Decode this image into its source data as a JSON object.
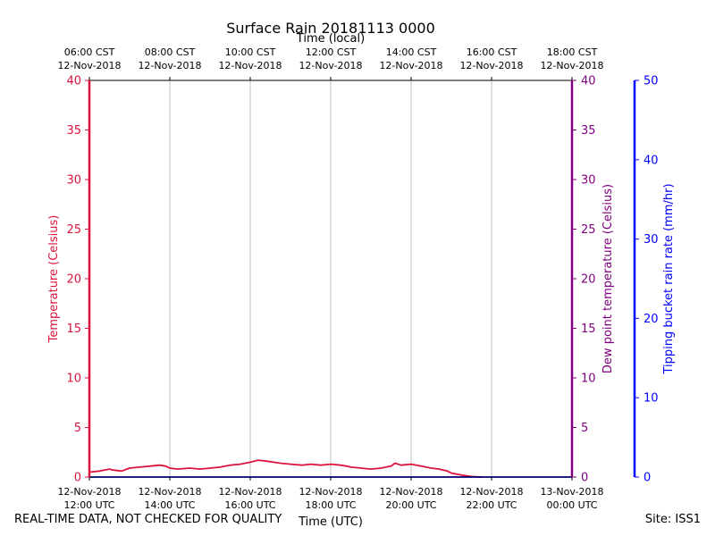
{
  "chart_data": {
    "type": "line",
    "title": "Surface Rain 20181113 0000",
    "top_axis_label": "Time (local)",
    "x_axis_label": "Time (UTC)",
    "left_ylabel": "Temperature (Celsius)",
    "right_ylabel": "Dew point temperature (Celsius)",
    "far_right_ylabel": "Tipping bucket rain rate (mm/hr)",
    "x_range_hours": [
      12,
      24
    ],
    "temp_ylim": [
      0,
      40
    ],
    "dew_ylim": [
      0,
      40
    ],
    "rain_ylim": [
      0,
      50
    ],
    "temp_ticks": [
      "0",
      "5",
      "10",
      "15",
      "20",
      "25",
      "30",
      "35",
      "40"
    ],
    "dew_ticks": [
      "0",
      "5",
      "10",
      "15",
      "20",
      "25",
      "30",
      "35",
      "40"
    ],
    "rain_ticks": [
      "0",
      "10",
      "20",
      "30",
      "40",
      "50"
    ],
    "bottom_ticks": [
      {
        "hour": 12,
        "line1": "12-Nov-2018",
        "line2": "12:00 UTC"
      },
      {
        "hour": 14,
        "line1": "12-Nov-2018",
        "line2": "14:00 UTC"
      },
      {
        "hour": 16,
        "line1": "12-Nov-2018",
        "line2": "16:00 UTC"
      },
      {
        "hour": 18,
        "line1": "12-Nov-2018",
        "line2": "18:00 UTC"
      },
      {
        "hour": 20,
        "line1": "12-Nov-2018",
        "line2": "20:00 UTC"
      },
      {
        "hour": 22,
        "line1": "12-Nov-2018",
        "line2": "22:00 UTC"
      },
      {
        "hour": 24,
        "line1": "13-Nov-2018",
        "line2": "00:00 UTC"
      }
    ],
    "top_ticks": [
      {
        "hour": 12,
        "line1": "06:00 CST",
        "line2": "12-Nov-2018"
      },
      {
        "hour": 14,
        "line1": "08:00 CST",
        "line2": "12-Nov-2018"
      },
      {
        "hour": 16,
        "line1": "10:00 CST",
        "line2": "12-Nov-2018"
      },
      {
        "hour": 18,
        "line1": "12:00 CST",
        "line2": "12-Nov-2018"
      },
      {
        "hour": 20,
        "line1": "14:00 CST",
        "line2": "12-Nov-2018"
      },
      {
        "hour": 22,
        "line1": "16:00 CST",
        "line2": "12-Nov-2018"
      },
      {
        "hour": 24,
        "line1": "18:00 CST",
        "line2": "12-Nov-2018"
      }
    ],
    "series": [
      {
        "name": "Temperature",
        "color": "#dc143c",
        "x": [
          12.0,
          12.25,
          12.5,
          12.6,
          12.8,
          13.0,
          13.25,
          13.5,
          13.75,
          13.9,
          14.0,
          14.2,
          14.5,
          14.75,
          15.0,
          15.25,
          15.5,
          15.75,
          16.0,
          16.2,
          16.4,
          16.75,
          17.0,
          17.3,
          17.5,
          17.75,
          18.0,
          18.25,
          18.4,
          18.5,
          18.75,
          19.0,
          19.25,
          19.5,
          19.6,
          19.75,
          20.0,
          20.25,
          20.5,
          20.7,
          20.9,
          21.0,
          21.25,
          21.5,
          21.75
        ],
        "y": [
          0.5,
          0.6,
          0.8,
          0.7,
          0.6,
          0.9,
          1.0,
          1.1,
          1.2,
          1.1,
          0.9,
          0.8,
          0.9,
          0.8,
          0.9,
          1.0,
          1.2,
          1.3,
          1.5,
          1.7,
          1.6,
          1.4,
          1.3,
          1.2,
          1.3,
          1.2,
          1.3,
          1.2,
          1.1,
          1.0,
          0.9,
          0.8,
          0.9,
          1.1,
          1.4,
          1.2,
          1.3,
          1.1,
          0.9,
          0.8,
          0.6,
          0.4,
          0.2,
          0.05,
          0.0
        ]
      },
      {
        "name": "Dew point temperature",
        "color": "#800080",
        "x": [],
        "y": []
      },
      {
        "name": "Tipping bucket rain rate",
        "color": "#0000ff",
        "x": [
          12.0,
          24.0
        ],
        "y": [
          0,
          0
        ]
      }
    ]
  },
  "footer": {
    "disclaimer": "REAL-TIME DATA, NOT CHECKED FOR QUALITY",
    "site": "Site: ISS1"
  }
}
